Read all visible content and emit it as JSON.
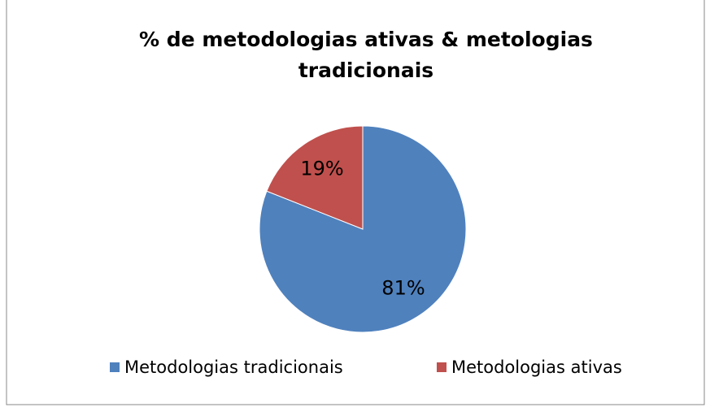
{
  "chart_data": {
    "type": "pie",
    "title": "% de metodologias ativas & metologias tradicionais",
    "categories": [
      "Metodologias tradicionais",
      "Metodologias ativas"
    ],
    "values": [
      81,
      19
    ],
    "value_labels": [
      "81%",
      "19%"
    ],
    "colors": [
      "#4f81bd",
      "#c0504d"
    ],
    "legend": "bottom"
  }
}
